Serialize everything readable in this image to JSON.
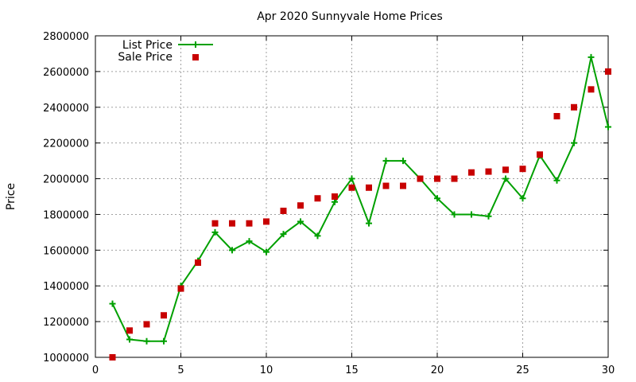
{
  "chart_data": {
    "type": "line",
    "title": "Apr 2020 Sunnyvale Home Prices",
    "xlabel": "",
    "ylabel": "Price",
    "xlim": [
      0,
      30
    ],
    "ylim": [
      1000000,
      2800000
    ],
    "xticks": [
      0,
      5,
      10,
      15,
      20,
      25,
      30
    ],
    "yticks": [
      1000000,
      1200000,
      1400000,
      1600000,
      1800000,
      2000000,
      2200000,
      2400000,
      2600000,
      2800000
    ],
    "grid": true,
    "legend_position": "top-left",
    "x": [
      1,
      2,
      3,
      4,
      5,
      6,
      7,
      8,
      9,
      10,
      11,
      12,
      13,
      14,
      15,
      16,
      17,
      18,
      19,
      20,
      21,
      22,
      23,
      24,
      25,
      26,
      27,
      28,
      29,
      30
    ],
    "series": [
      {
        "name": "List Price",
        "style": "line-plus",
        "color": "#00a000",
        "values": [
          1300000,
          1100000,
          1090000,
          1090000,
          1400000,
          1540000,
          1700000,
          1600000,
          1650000,
          1590000,
          1690000,
          1760000,
          1680000,
          1870000,
          2000000,
          1750000,
          2100000,
          2100000,
          2000000,
          1890000,
          1800000,
          1800000,
          1790000,
          2000000,
          1890000,
          2130000,
          1990000,
          2200000,
          2680000,
          2290000
        ]
      },
      {
        "name": "Sale Price",
        "style": "square",
        "color": "#c80000",
        "values": [
          1000000,
          1150000,
          1185000,
          1235000,
          1385000,
          1530000,
          1750000,
          1750000,
          1750000,
          1760000,
          1820000,
          1850000,
          1890000,
          1900000,
          1950000,
          1950000,
          1960000,
          1960000,
          2000000,
          2000000,
          2000000,
          2035000,
          2040000,
          2050000,
          2055000,
          2135000,
          2350000,
          2400000,
          2500000,
          2600000
        ]
      }
    ]
  }
}
